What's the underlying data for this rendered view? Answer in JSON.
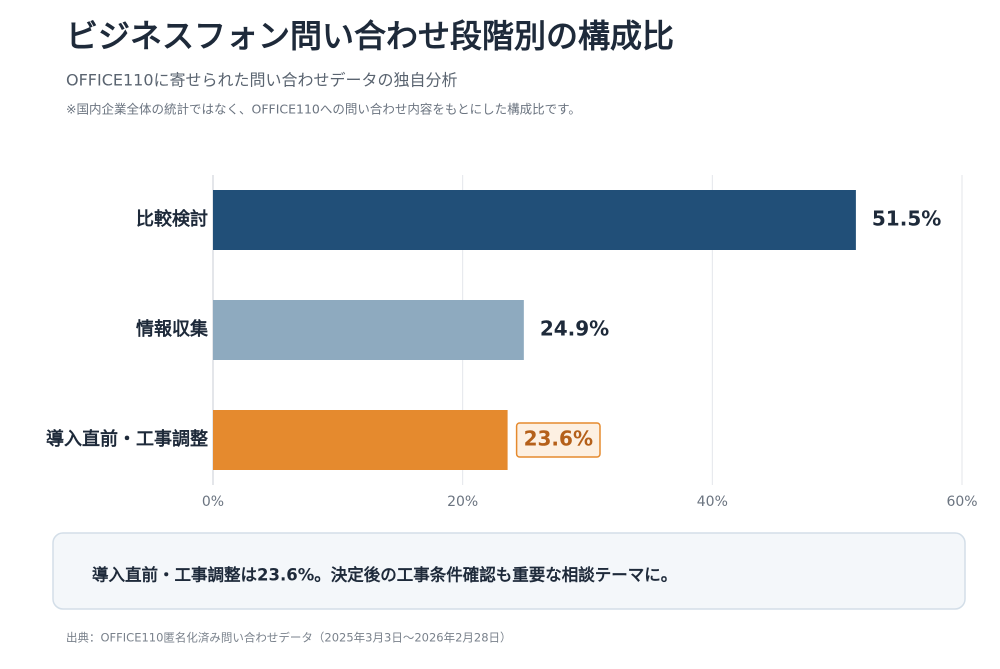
{
  "chart_data": {
    "type": "hbar",
    "title": "ビジネスフォン問い合わせ段階別の構成比",
    "subtitle": "OFFICE110に寄せられた問い合わせデータの独自分析",
    "note": "※国内企業全体の統計ではなく、OFFICE110への問い合わせ内容をもとにした構成比です。",
    "categories": [
      "比較検討",
      "情報収集",
      "導入直前・工事調整"
    ],
    "values": [
      51.5,
      24.9,
      23.6
    ],
    "value_labels": [
      "51.5%",
      "24.9%",
      "23.6%"
    ],
    "colors": [
      "#214f78",
      "#8eaabf",
      "#e58a2e"
    ],
    "highlighted_bar": 2,
    "xlim": [
      0,
      60
    ],
    "xticks": [
      {
        "value": 0,
        "label": "0%"
      },
      {
        "value": 20,
        "label": "20%"
      },
      {
        "value": 40,
        "label": "40%"
      },
      {
        "value": 60,
        "label": "60%"
      }
    ],
    "grid": true,
    "callout": "導入直前・工事調整は23.6%。決定後の工事条件確認も重要な相談テーマに。",
    "source": "出典：OFFICE110匿名化済み問い合わせデータ（2025年3月3日〜2026年2月28日）"
  }
}
